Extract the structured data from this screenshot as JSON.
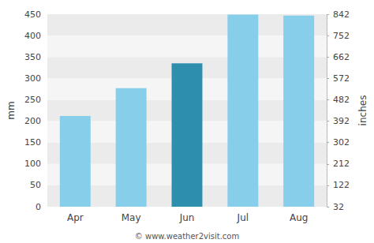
{
  "chart_data": {
    "type": "bar",
    "categories": [
      "Apr",
      "May",
      "Jun",
      "Jul",
      "Aug"
    ],
    "values": [
      212,
      277,
      335,
      449,
      447
    ],
    "colors": [
      "#87CEEB",
      "#87CEEB",
      "#2E8FAD",
      "#87CEEB",
      "#87CEEB"
    ],
    "ylabel": "mm",
    "y2label": "inches",
    "ylim": [
      0,
      450
    ],
    "yticks": [
      0,
      50,
      100,
      150,
      200,
      250,
      300,
      350,
      400,
      450
    ],
    "y2lim": [
      32,
      842
    ],
    "y2ticks": [
      32,
      122,
      212,
      302,
      392,
      482,
      572,
      662,
      752,
      842
    ],
    "grid": true,
    "annotations": [
      "© www.weather2visit.com"
    ]
  }
}
